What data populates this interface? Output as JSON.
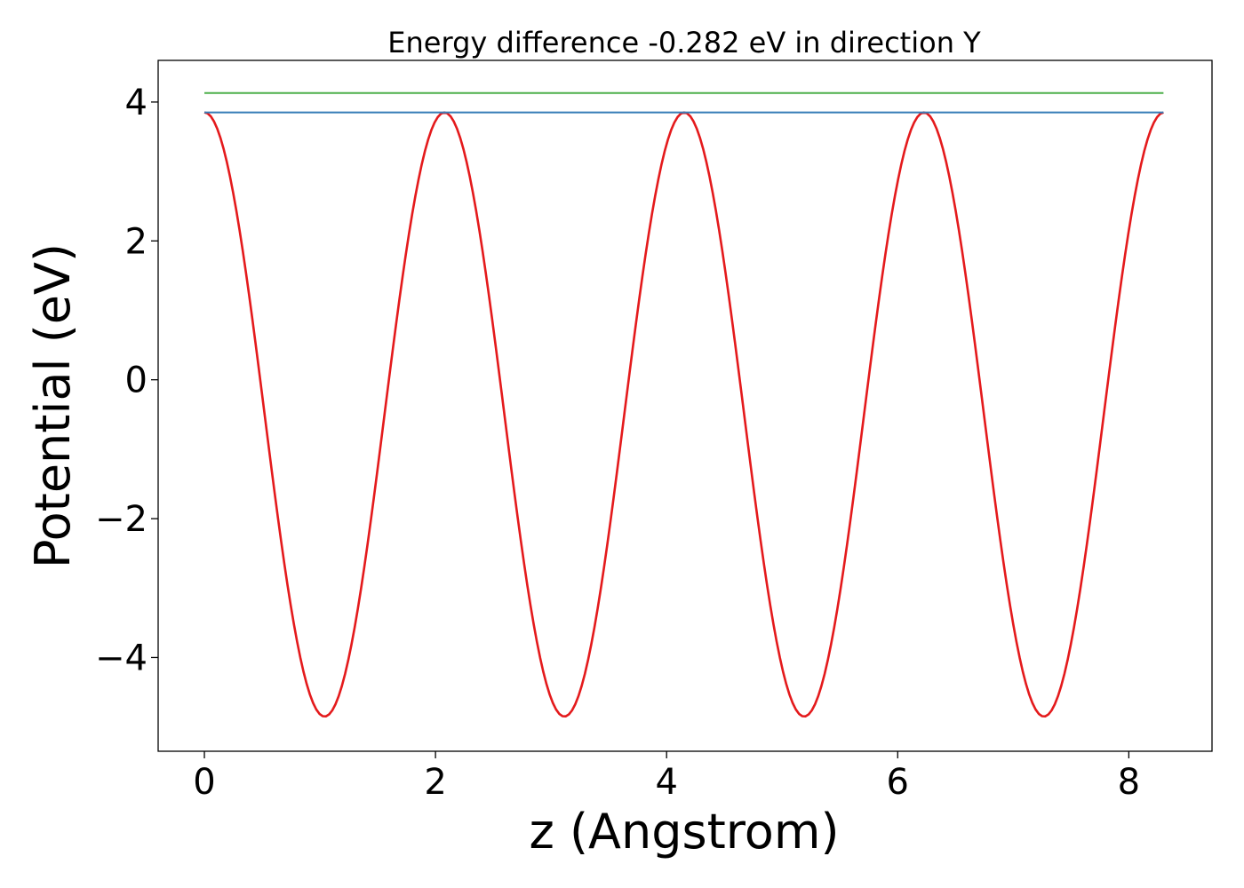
{
  "chart_data": {
    "type": "line",
    "title": "Energy difference -0.282 eV in direction Y",
    "xlabel": "z (Angstrom)",
    "ylabel": "Potential (eV)",
    "xlim": [
      -0.4,
      8.72
    ],
    "ylim": [
      -5.35,
      4.6
    ],
    "x_ticks": [
      0,
      2,
      4,
      6,
      8
    ],
    "x_tick_labels": [
      "0",
      "2",
      "4",
      "6",
      "8"
    ],
    "y_ticks": [
      -4,
      -2,
      0,
      2,
      4
    ],
    "y_tick_labels": [
      "−4",
      "−2",
      "0",
      "2",
      "4"
    ],
    "grid": false,
    "legend": "none",
    "series": [
      {
        "style": "oscillating",
        "color": "#e41a1c",
        "x_start": 0,
        "x_end": 8.3,
        "period": 2.075,
        "max": 3.85,
        "min": -4.85,
        "first_minimum_x": 1.04,
        "points": 300
      },
      {
        "style": "constant",
        "color": "#377eb8",
        "x": [
          0,
          8.3
        ],
        "y": [
          3.85,
          3.85
        ]
      },
      {
        "style": "constant",
        "color": "#4daf4a",
        "x": [
          0,
          8.3
        ],
        "y": [
          4.13,
          4.13
        ]
      }
    ]
  }
}
